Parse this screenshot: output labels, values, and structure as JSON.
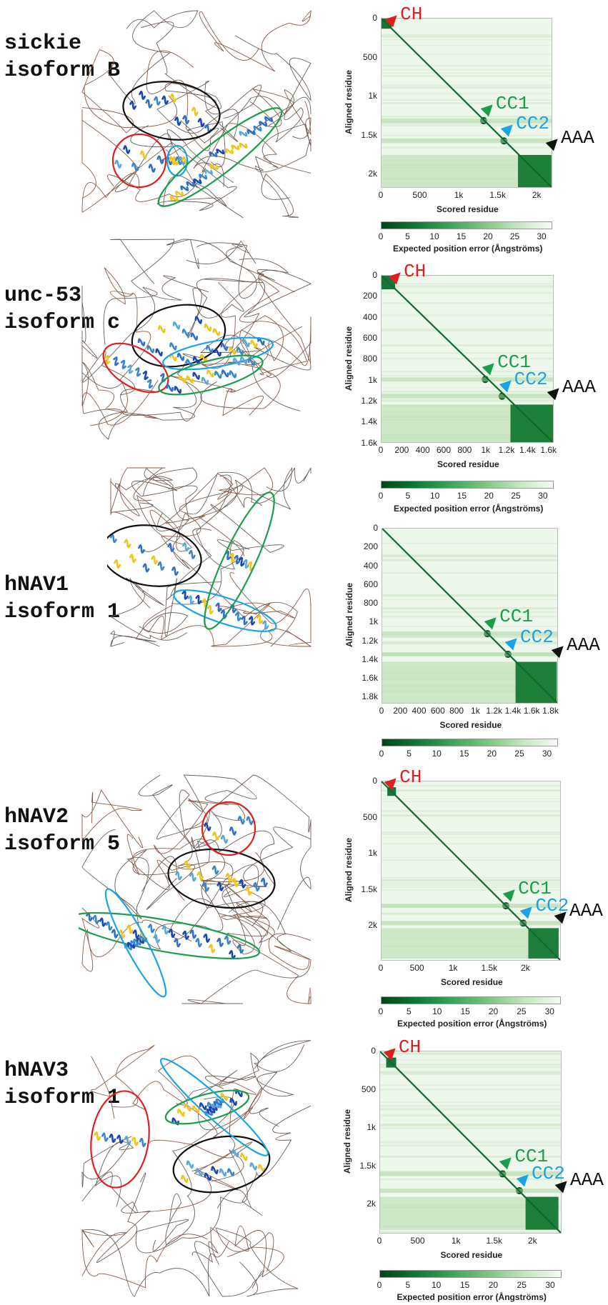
{
  "figure": {
    "colors": {
      "CH": "#e0201e",
      "CC1": "#1a9e4a",
      "CC2": "#1aa3e6",
      "AAA": "#111111",
      "domain_circle_black": "#111111",
      "domain_circle_red": "#e0201e",
      "domain_circle_green": "#1a9e4a",
      "domain_circle_blue": "#1aa3e6",
      "pae_dark": "#00441b",
      "pae_light": "#f7fcf5"
    },
    "panels": [
      {
        "label_line1": "sickie",
        "label_line2": "isoform B",
        "pae": {
          "annotations": [
            "CH",
            "CC1",
            "CC2",
            "AAA"
          ],
          "y_title": "Aligned residue",
          "x_title": "Scored residue",
          "y_ticks": [
            "0",
            "500",
            "1k",
            "1.5k",
            "2k"
          ],
          "x_ticks": [
            "0",
            "500",
            "1k",
            "1.5k",
            "2k"
          ]
        },
        "colorbar": {
          "ticks": [
            "0",
            "5",
            "10",
            "15",
            "20",
            "25",
            "30"
          ],
          "title": "Expected position error (Ångströms)"
        }
      },
      {
        "label_line1": "unc-53",
        "label_line2": "isoform c",
        "pae": {
          "annotations": [
            "CH",
            "CC1",
            "CC2",
            "AAA"
          ],
          "y_title": "Aligned residue",
          "x_title": "Scored residue",
          "y_ticks": [
            "0",
            "200",
            "400",
            "600",
            "800",
            "1k",
            "1.2k",
            "1.4k",
            "1.6k"
          ],
          "x_ticks": [
            "0",
            "200",
            "400",
            "600",
            "800",
            "1k",
            "1.2k",
            "1.4k",
            "1.6k"
          ]
        },
        "colorbar": {
          "ticks": [
            "0",
            "5",
            "10",
            "15",
            "20",
            "25",
            "30"
          ],
          "title": "Expected position error (Ångströms)"
        }
      },
      {
        "label_line1": "hNAV1",
        "label_line2": "isoform 1",
        "pae": {
          "annotations": [
            "CC1",
            "CC2",
            "AAA"
          ],
          "y_title": "Aligned residue",
          "x_title": "Scored residue",
          "y_ticks": [
            "0",
            "200",
            "400",
            "600",
            "800",
            "1k",
            "1.2k",
            "1.4k",
            "1.6k",
            "1.8k"
          ],
          "x_ticks": [
            "0",
            "200",
            "400",
            "600",
            "800",
            "1k",
            "1.2k",
            "1.4k",
            "1.6k",
            "1.8k"
          ]
        },
        "colorbar": {
          "ticks": [
            "0",
            "5",
            "10",
            "15",
            "20",
            "25",
            "30"
          ],
          "title": ""
        }
      },
      {
        "label_line1": "hNAV2",
        "label_line2": "isoform 5",
        "pae": {
          "annotations": [
            "CH",
            "CC1",
            "CC2",
            "AAA"
          ],
          "y_title": "Aligned residue",
          "x_title": "Scored residue",
          "y_ticks": [
            "0",
            "500",
            "1k",
            "1.5k",
            "2k"
          ],
          "x_ticks": [
            "0",
            "500",
            "1k",
            "1.5k",
            "2k"
          ]
        },
        "colorbar": {
          "ticks": [
            "0",
            "5",
            "10",
            "15",
            "20",
            "25",
            "30"
          ],
          "title": "Expected position error (Ångströms)"
        }
      },
      {
        "label_line1": "hNAV3",
        "label_line2": "isoform 1",
        "pae": {
          "annotations": [
            "CH",
            "CC1",
            "CC2",
            "AAA"
          ],
          "y_title": "Aligned residue",
          "x_title": "Scored residue",
          "y_ticks": [
            "0",
            "500",
            "1k",
            "1.5k",
            "2k"
          ],
          "x_ticks": [
            "0",
            "500",
            "1k",
            "1.5k",
            "2k"
          ]
        },
        "colorbar": {
          "ticks": [
            "0",
            "5",
            "10",
            "15",
            "20",
            "25",
            "30"
          ],
          "title": "Expected position error (Ångströms)"
        }
      }
    ]
  },
  "chart_data": [
    {
      "type": "heatmap",
      "title": "sickie isoform B — Predicted Aligned Error",
      "xlabel": "Scored residue",
      "ylabel": "Aligned residue",
      "xlim": [
        0,
        2200
      ],
      "ylim": [
        0,
        2200
      ],
      "x_ticks": [
        0,
        500,
        1000,
        1500,
        2000
      ],
      "y_ticks": [
        0,
        500,
        1000,
        1500,
        2000
      ],
      "colorbar": {
        "label": "Expected position error (Ångströms)",
        "range": [
          0,
          32
        ],
        "ticks": [
          0,
          5,
          10,
          15,
          20,
          25,
          30
        ],
        "colormap": "Greens_r"
      },
      "annotations": [
        {
          "label": "CH",
          "color": "#e0201e",
          "residue_range": [
            0,
            130
          ]
        },
        {
          "label": "CC1",
          "color": "#1a9e4a",
          "residue_approx": 1310
        },
        {
          "label": "CC2",
          "color": "#1aa3e6",
          "residue_approx": 1570
        },
        {
          "label": "AAA",
          "color": "#111111",
          "residue_range": [
            1750,
            2180
          ]
        }
      ]
    },
    {
      "type": "heatmap",
      "title": "unc-53 isoform c — Predicted Aligned Error",
      "xlabel": "Scored residue",
      "ylabel": "Aligned residue",
      "xlim": [
        0,
        1650
      ],
      "ylim": [
        0,
        1650
      ],
      "x_ticks": [
        0,
        200,
        400,
        600,
        800,
        1000,
        1200,
        1400,
        1600
      ],
      "y_ticks": [
        0,
        200,
        400,
        600,
        800,
        1000,
        1200,
        1400,
        1600
      ],
      "colorbar": {
        "label": "Expected position error (Ångströms)",
        "range": [
          0,
          32
        ],
        "ticks": [
          0,
          5,
          10,
          15,
          20,
          25,
          30
        ],
        "colormap": "Greens_r"
      },
      "annotations": [
        {
          "label": "CH",
          "color": "#e0201e",
          "residue_range": [
            0,
            130
          ]
        },
        {
          "label": "CC1",
          "color": "#1a9e4a",
          "residue_approx": 990
        },
        {
          "label": "CC2",
          "color": "#1aa3e6",
          "residue_approx": 1150
        },
        {
          "label": "AAA",
          "color": "#111111",
          "residue_range": [
            1230,
            1640
          ]
        }
      ]
    },
    {
      "type": "heatmap",
      "title": "hNAV1 isoform 1 — Predicted Aligned Error",
      "xlabel": "Scored residue",
      "ylabel": "Aligned residue",
      "xlim": [
        0,
        1880
      ],
      "ylim": [
        0,
        1880
      ],
      "x_ticks": [
        0,
        200,
        400,
        600,
        800,
        1000,
        1200,
        1400,
        1600,
        1800
      ],
      "y_ticks": [
        0,
        200,
        400,
        600,
        800,
        1000,
        1200,
        1400,
        1600,
        1800
      ],
      "colorbar": {
        "label": "",
        "range": [
          0,
          32
        ],
        "ticks": [
          0,
          5,
          10,
          15,
          20,
          25,
          30
        ],
        "colormap": "Greens_r"
      },
      "annotations": [
        {
          "label": "CC1",
          "color": "#1a9e4a",
          "residue_approx": 1120
        },
        {
          "label": "CC2",
          "color": "#1aa3e6",
          "residue_approx": 1340
        },
        {
          "label": "AAA",
          "color": "#111111",
          "residue_range": [
            1420,
            1860
          ]
        }
      ]
    },
    {
      "type": "heatmap",
      "title": "hNAV2 isoform 5 — Predicted Aligned Error",
      "xlabel": "Scored residue",
      "ylabel": "Aligned residue",
      "xlim": [
        0,
        2490
      ],
      "ylim": [
        0,
        2490
      ],
      "x_ticks": [
        0,
        500,
        1000,
        1500,
        2000
      ],
      "y_ticks": [
        0,
        500,
        1000,
        1500,
        2000
      ],
      "colorbar": {
        "label": "Expected position error (Ångströms)",
        "range": [
          0,
          32
        ],
        "ticks": [
          0,
          5,
          10,
          15,
          20,
          25,
          30
        ],
        "colormap": "Greens_r"
      },
      "annotations": [
        {
          "label": "CH",
          "color": "#e0201e",
          "residue_range": [
            80,
            200
          ]
        },
        {
          "label": "CC1",
          "color": "#1a9e4a",
          "residue_approx": 1720
        },
        {
          "label": "CC2",
          "color": "#1aa3e6",
          "residue_approx": 1960
        },
        {
          "label": "AAA",
          "color": "#111111",
          "residue_range": [
            2030,
            2450
          ]
        }
      ]
    },
    {
      "type": "heatmap",
      "title": "hNAV3 isoform 1 — Predicted Aligned Error",
      "xlabel": "Scored residue",
      "ylabel": "Aligned residue",
      "xlim": [
        0,
        2380
      ],
      "ylim": [
        0,
        2380
      ],
      "x_ticks": [
        0,
        500,
        1000,
        1500,
        2000
      ],
      "y_ticks": [
        0,
        500,
        1000,
        1500,
        2000
      ],
      "colorbar": {
        "label": "Expected position error (Ångströms)",
        "range": [
          0,
          32
        ],
        "ticks": [
          0,
          5,
          10,
          15,
          20,
          25,
          30
        ],
        "colormap": "Greens_r"
      },
      "annotations": [
        {
          "label": "CH",
          "color": "#e0201e",
          "residue_range": [
            80,
            210
          ]
        },
        {
          "label": "CC1",
          "color": "#1a9e4a",
          "residue_approx": 1600
        },
        {
          "label": "CC2",
          "color": "#1aa3e6",
          "residue_approx": 1820
        },
        {
          "label": "AAA",
          "color": "#111111",
          "residue_range": [
            1900,
            2330
          ]
        }
      ]
    }
  ]
}
